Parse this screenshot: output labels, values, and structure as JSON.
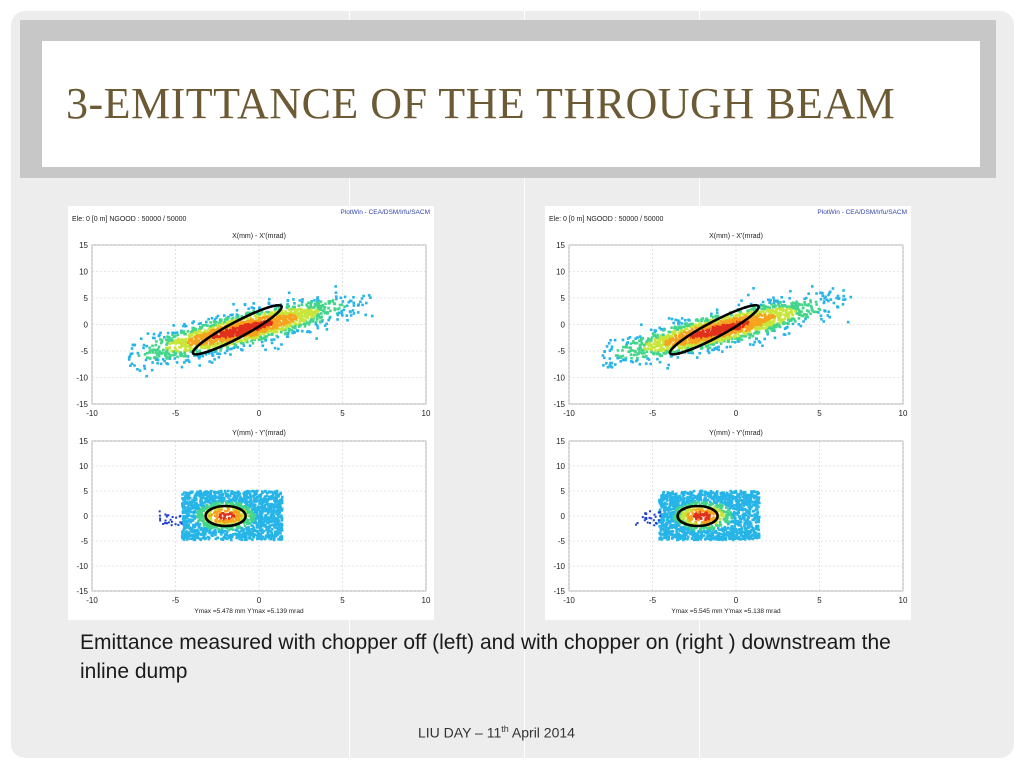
{
  "slide": {
    "title": "3-EMITTANCE OF THE THROUGH BEAM",
    "caption": "Emittance measured with chopper off (left) and with chopper on (right ) downstream the inline dump",
    "footer": {
      "prefix": "LIU DAY – 11",
      "sup": "th",
      "suffix": " April 2014"
    },
    "colors": {
      "title": "#6b5a34",
      "accent_frame": "#c7c7c7",
      "ellipse": "#000000"
    }
  },
  "chart_data": [
    {
      "type": "scatter",
      "panel": "left",
      "header": "Ele: 0 [0 m]   NGOOD : 50000 / 50000",
      "credit": "PlotWin - CEA/DSM/Irfu/SACM",
      "plots": [
        {
          "title": "X(mm) - X'(mrad)",
          "xlim": [
            -10,
            10
          ],
          "ylim": [
            -15,
            15
          ],
          "xticks": [
            "-10",
            "-5",
            "0",
            "5",
            "10"
          ],
          "yticks": [
            "15",
            "10",
            "5",
            "0",
            "-5",
            "-10",
            "-15"
          ],
          "distribution": {
            "center_x": -1,
            "center_y": -1,
            "slope": 0.75,
            "spread_major": 4.2,
            "spread_minor": 1.2,
            "xrange": [
              -8,
              7
            ]
          },
          "ellipse": {
            "cx": -1.3,
            "cy": -1.0,
            "rx": 3.0,
            "ry": 1.5,
            "angle_deg": 28
          },
          "footer_note": ""
        },
        {
          "title": "Y(mm) - Y'(mrad)",
          "xlim": [
            -10,
            10
          ],
          "ylim": [
            -15,
            15
          ],
          "xticks": [
            "-10",
            "-5",
            "0",
            "5",
            "10"
          ],
          "yticks": [
            "15",
            "10",
            "5",
            "0",
            "-5",
            "-10",
            "-15"
          ],
          "distribution": {
            "center_x": -2,
            "center_y": 0,
            "xrange": [
              -4.6,
              1.4
            ],
            "yrange": [
              -4.8,
              5.0
            ]
          },
          "ellipse": {
            "cx": -2.0,
            "cy": 0.0,
            "rx": 1.2,
            "ry": 2.0,
            "angle_deg": 0
          },
          "footer_note": "Ymax =5.478 mm  Y'max =5.139 mrad"
        }
      ]
    },
    {
      "type": "scatter",
      "panel": "right",
      "header": "Ele: 0 [0 m]   NGOOD : 50000 / 50000",
      "credit": "PlotWin - CEA/DSM/Irfu/SACM",
      "plots": [
        {
          "title": "X(mm) - X'(mrad)",
          "xlim": [
            -10,
            10
          ],
          "ylim": [
            -15,
            15
          ],
          "xticks": [
            "-10",
            "-5",
            "0",
            "5",
            "10"
          ],
          "yticks": [
            "15",
            "10",
            "5",
            "0",
            "-5",
            "-10",
            "-15"
          ],
          "distribution": {
            "center_x": -1,
            "center_y": -1,
            "slope": 0.75,
            "spread_major": 4.2,
            "spread_minor": 1.2,
            "xrange": [
              -8,
              7
            ]
          },
          "ellipse": {
            "cx": -1.3,
            "cy": -1.0,
            "rx": 3.0,
            "ry": 1.5,
            "angle_deg": 28
          },
          "footer_note": ""
        },
        {
          "title": "Y(mm) - Y'(mrad)",
          "xlim": [
            -10,
            10
          ],
          "ylim": [
            -15,
            15
          ],
          "xticks": [
            "-10",
            "-5",
            "0",
            "5",
            "10"
          ],
          "yticks": [
            "15",
            "10",
            "5",
            "0",
            "-5",
            "-10",
            "-15"
          ],
          "distribution": {
            "center_x": -2,
            "center_y": 0,
            "xrange": [
              -4.6,
              1.4
            ],
            "yrange": [
              -4.8,
              5.0
            ]
          },
          "ellipse": {
            "cx": -2.3,
            "cy": 0.0,
            "rx": 1.2,
            "ry": 2.0,
            "angle_deg": 0
          },
          "footer_note": "Ymax =5.545 mm  Y'max =5.138 mrad"
        }
      ]
    }
  ]
}
